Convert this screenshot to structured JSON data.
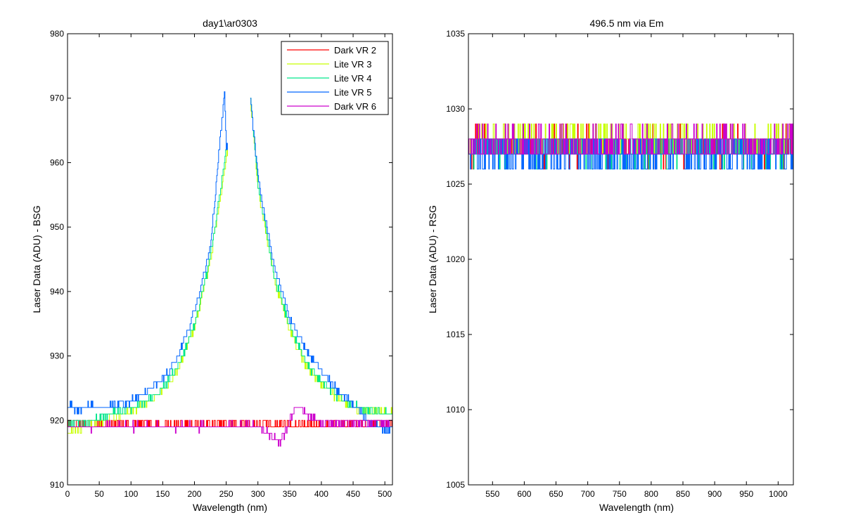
{
  "chart_data": [
    {
      "type": "line",
      "title": "day1\\ar0303",
      "xlabel": "Wavelength (nm)",
      "ylabel": "Laser Data (ADU) - BSG",
      "xlim": [
        0,
        512
      ],
      "ylim": [
        910,
        980
      ],
      "xticks": [
        0,
        50,
        100,
        150,
        200,
        250,
        300,
        350,
        400,
        450,
        500
      ],
      "yticks": [
        910,
        920,
        930,
        940,
        950,
        960,
        970,
        980
      ],
      "grid": false,
      "legend_position": "top-right",
      "series": [
        {
          "name": "Dark VR 2",
          "color": "#ff0000",
          "x": [
            0,
            100,
            200,
            300,
            400,
            512
          ],
          "y": [
            919.4,
            919.3,
            919.3,
            919.4,
            919.3,
            919.4
          ]
        },
        {
          "name": "Lite VR 3",
          "color": "#c8ff00",
          "x": [
            0,
            25,
            50,
            75,
            100,
            125,
            150,
            175,
            200,
            225,
            250,
            288,
            300,
            325,
            350,
            375,
            400,
            425,
            450,
            475,
            512
          ],
          "y": [
            918,
            918.8,
            919.8,
            920.8,
            921.5,
            922.5,
            924.5,
            928,
            934.5,
            945,
            961,
            970,
            956,
            942,
            934,
            928.5,
            925.5,
            923.5,
            922,
            921.5,
            921
          ]
        },
        {
          "name": "Lite VR 4",
          "color": "#00e68c",
          "x": [
            0,
            25,
            50,
            75,
            100,
            125,
            150,
            175,
            200,
            225,
            250,
            288,
            300,
            325,
            350,
            375,
            400,
            425,
            450,
            475,
            512
          ],
          "y": [
            919,
            919.5,
            920.4,
            921.2,
            921.8,
            923,
            925,
            928.5,
            935,
            945.5,
            962,
            970,
            956.5,
            942.5,
            934.5,
            929,
            926,
            923.8,
            922.2,
            921.5,
            921
          ]
        },
        {
          "name": "Lite VR 5",
          "color": "#0066ff",
          "x": [
            0,
            25,
            50,
            75,
            100,
            125,
            150,
            175,
            200,
            225,
            247,
            250,
            288,
            300,
            325,
            350,
            375,
            400,
            425,
            450,
            475,
            512
          ],
          "y": [
            922,
            922,
            922,
            922.5,
            923,
            924.5,
            926.5,
            930,
            937,
            947,
            971,
            962,
            970,
            957.5,
            944,
            936,
            931,
            927.5,
            924.5,
            922.5,
            919.5,
            918.5
          ]
        },
        {
          "name": "Dark VR 6",
          "color": "#cc00cc",
          "x": [
            0,
            100,
            200,
            300,
            335,
            360,
            400,
            512
          ],
          "y": [
            919,
            919,
            919,
            919.2,
            916.5,
            922,
            919.5,
            919.8
          ]
        }
      ]
    },
    {
      "type": "line",
      "title": "496.5 nm via Em",
      "xlabel": "Wavelength (nm)",
      "ylabel": "Laser Data (ADU) - RSG",
      "xlim": [
        512,
        1024
      ],
      "ylim": [
        1005,
        1035
      ],
      "xticks": [
        550,
        600,
        650,
        700,
        750,
        800,
        850,
        900,
        950,
        1000
      ],
      "yticks": [
        1005,
        1010,
        1015,
        1020,
        1025,
        1030,
        1035
      ],
      "grid": false,
      "series": [
        {
          "color": "#ff0000",
          "x": [
            512,
            1024
          ],
          "y": [
            1027.5,
            1027.5
          ]
        },
        {
          "color": "#c8ff00",
          "x": [
            512,
            1024
          ],
          "y": [
            1027.8,
            1027.8
          ]
        },
        {
          "color": "#00e68c",
          "x": [
            512,
            1024
          ],
          "y": [
            1027.4,
            1027.4
          ]
        },
        {
          "color": "#0066ff",
          "x": [
            512,
            1024
          ],
          "y": [
            1027.0,
            1027.0
          ]
        },
        {
          "color": "#cc00cc",
          "x": [
            512,
            1024
          ],
          "y": [
            1027.6,
            1027.6
          ]
        }
      ]
    }
  ]
}
